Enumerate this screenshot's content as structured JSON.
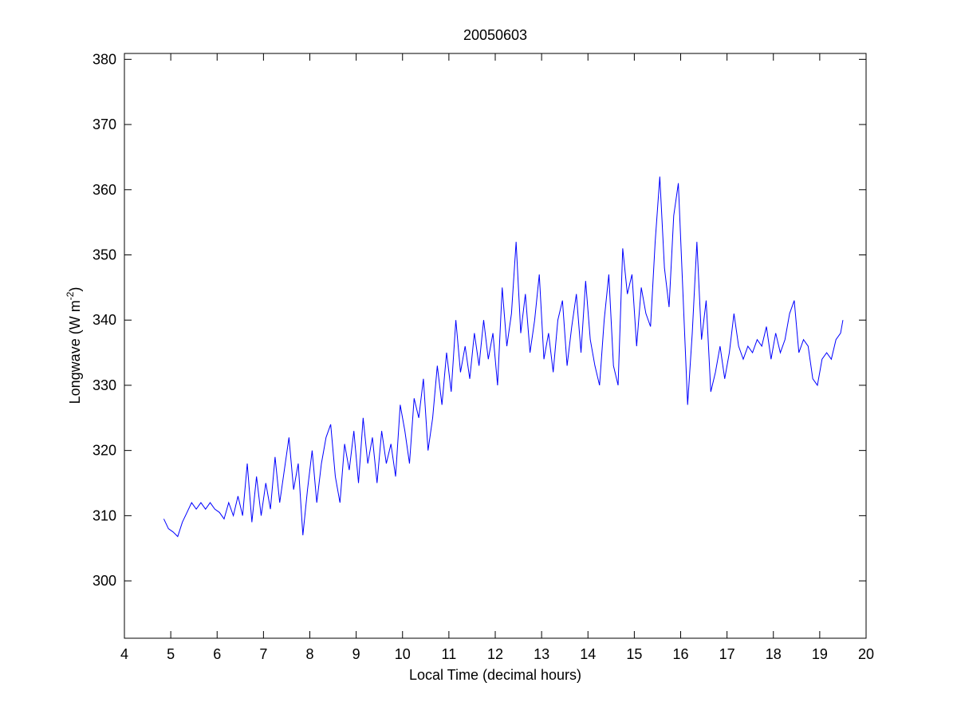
{
  "chart_data": {
    "type": "line",
    "title": "20050603",
    "xlabel": "Local Time (decimal hours)",
    "ylabel": {
      "text": "Longwave (W m",
      "superscript": "-2",
      "suffix": ")"
    },
    "xlim": [
      4,
      20
    ],
    "xticks": [
      4,
      5,
      6,
      7,
      8,
      9,
      10,
      11,
      12,
      13,
      14,
      15,
      16,
      17,
      18,
      19,
      20
    ],
    "ylim": [
      291.2,
      380.9
    ],
    "yticks": [
      300,
      310,
      320,
      330,
      340,
      350,
      360,
      370,
      380
    ],
    "grid": false,
    "series": [
      {
        "name": "Longwave",
        "color": "#0000ff",
        "x": [
          4.85,
          4.95,
          5.05,
          5.15,
          5.25,
          5.35,
          5.45,
          5.55,
          5.65,
          5.75,
          5.85,
          5.95,
          6.05,
          6.15,
          6.25,
          6.35,
          6.45,
          6.55,
          6.65,
          6.75,
          6.85,
          6.95,
          7.05,
          7.15,
          7.25,
          7.35,
          7.45,
          7.55,
          7.65,
          7.75,
          7.85,
          7.95,
          8.05,
          8.15,
          8.25,
          8.35,
          8.45,
          8.55,
          8.65,
          8.75,
          8.85,
          8.95,
          9.05,
          9.15,
          9.25,
          9.35,
          9.45,
          9.55,
          9.65,
          9.75,
          9.85,
          9.95,
          10.05,
          10.15,
          10.25,
          10.35,
          10.45,
          10.55,
          10.65,
          10.75,
          10.85,
          10.95,
          11.05,
          11.15,
          11.25,
          11.35,
          11.45,
          11.55,
          11.65,
          11.75,
          11.85,
          11.95,
          12.05,
          12.15,
          12.25,
          12.35,
          12.45,
          12.55,
          12.65,
          12.75,
          12.85,
          12.95,
          13.05,
          13.15,
          13.25,
          13.35,
          13.45,
          13.55,
          13.65,
          13.75,
          13.85,
          13.95,
          14.05,
          14.15,
          14.25,
          14.35,
          14.45,
          14.55,
          14.65,
          14.75,
          14.85,
          14.95,
          15.05,
          15.15,
          15.25,
          15.35,
          15.45,
          15.55,
          15.65,
          15.75,
          15.85,
          15.95,
          16.05,
          16.15,
          16.25,
          16.35,
          16.45,
          16.55,
          16.65,
          16.75,
          16.85,
          16.95,
          17.05,
          17.15,
          17.25,
          17.35,
          17.45,
          17.55,
          17.65,
          17.75,
          17.85,
          17.95,
          18.05,
          18.15,
          18.25,
          18.35,
          18.45,
          18.55,
          18.65,
          18.75,
          18.85,
          18.95,
          19.05,
          19.15,
          19.25,
          19.35,
          19.45,
          19.5
        ],
        "values": [
          309.5,
          308,
          307.5,
          306.8,
          309,
          310.5,
          312,
          311,
          312,
          311,
          312,
          311,
          310.5,
          309.5,
          312,
          310,
          313,
          310,
          318,
          309,
          316,
          310,
          315,
          311,
          319,
          312,
          317,
          322,
          314,
          318,
          307,
          314,
          320,
          312,
          318,
          322,
          324,
          316,
          312,
          321,
          317,
          323,
          315,
          325,
          318,
          322,
          315,
          323,
          318,
          321,
          316,
          327,
          323,
          318,
          328,
          325,
          331,
          320,
          325,
          333,
          327,
          335,
          329,
          340,
          332,
          336,
          331,
          338,
          333,
          340,
          334,
          338,
          330,
          345,
          336,
          341,
          352,
          338,
          344,
          335,
          340,
          347,
          334,
          338,
          332,
          340,
          343,
          333,
          339,
          344,
          335,
          346,
          337,
          333,
          330,
          340,
          347,
          333,
          330,
          351,
          344,
          347,
          336,
          345,
          341,
          339,
          352,
          362,
          348,
          342,
          356,
          361,
          344,
          327,
          338,
          352,
          337,
          343,
          329,
          332,
          336,
          331,
          335,
          341,
          336,
          334,
          336,
          335,
          337,
          336,
          339,
          334,
          338,
          335,
          337,
          341,
          343,
          335,
          337,
          336,
          331,
          330,
          334,
          335,
          334,
          337,
          338,
          340
        ]
      }
    ]
  }
}
